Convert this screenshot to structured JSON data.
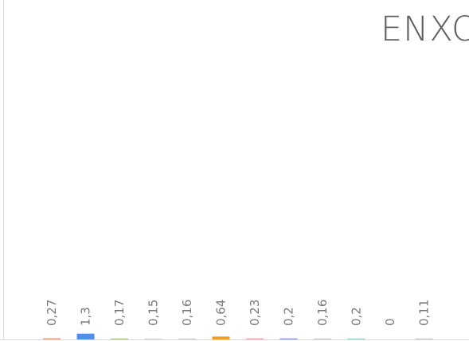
{
  "chart_data": {
    "type": "bar",
    "title": "ENXO",
    "xlabel": "",
    "ylabel": "",
    "ylim": [
      0,
      100
    ],
    "grid": false,
    "legend": "none",
    "decimal_separator": ",",
    "values": [
      0.27,
      1.3,
      0.17,
      0.15,
      0.16,
      0.64,
      0.23,
      0.2,
      0.16,
      0.2,
      0,
      0.11
    ],
    "data_labels": [
      "0,27",
      "1,3",
      "0,17",
      "0,15",
      "0,16",
      "0,64",
      "0,23",
      "0,2",
      "0,16",
      "0,2",
      "0",
      "0,11"
    ],
    "colors": [
      "#e8a37c",
      "#4f8fea",
      "#a9c98a",
      "#d9d9d9",
      "#cfcfcf",
      "#f39a28",
      "#eba1a1",
      "#7f8fd6",
      "#c9c9c9",
      "#9fcfc5",
      "#cccccc",
      "#cccccc"
    ]
  }
}
